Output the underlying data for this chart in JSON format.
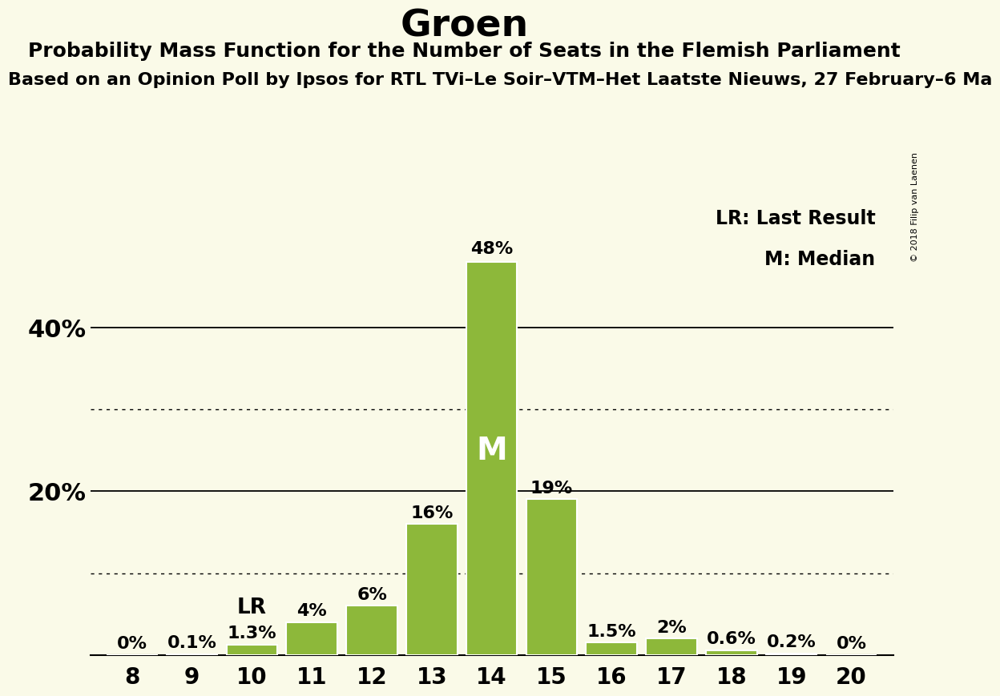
{
  "title": "Groen",
  "subtitle": "Probability Mass Function for the Number of Seats in the Flemish Parliament",
  "subsubtitle": "Based on an Opinion Poll by Ipsos for RTL TVi–Le Soir–VTM–Het Laatste Nieuws, 27 February–6 Ma",
  "copyright": "© 2018 Filip van Laenen",
  "seats": [
    8,
    9,
    10,
    11,
    12,
    13,
    14,
    15,
    16,
    17,
    18,
    19,
    20
  ],
  "values": [
    0.0,
    0.1,
    1.3,
    4.0,
    6.0,
    16.0,
    48.0,
    19.0,
    1.5,
    2.0,
    0.6,
    0.2,
    0.0
  ],
  "bar_color": "#8db83a",
  "bar_edgecolor": "#ffffff",
  "background_color": "#fafae8",
  "lr_seat": 10,
  "median_seat": 14,
  "solid_yticks": [
    20,
    40
  ],
  "dotted_yticks": [
    10,
    30
  ],
  "ylim": [
    0,
    56
  ],
  "title_fontsize": 34,
  "subtitle_fontsize": 18,
  "subsubtitle_fontsize": 16,
  "axis_fontsize": 20,
  "bar_label_fontsize": 16,
  "ytick_fontsize": 22,
  "legend_fontsize": 17
}
